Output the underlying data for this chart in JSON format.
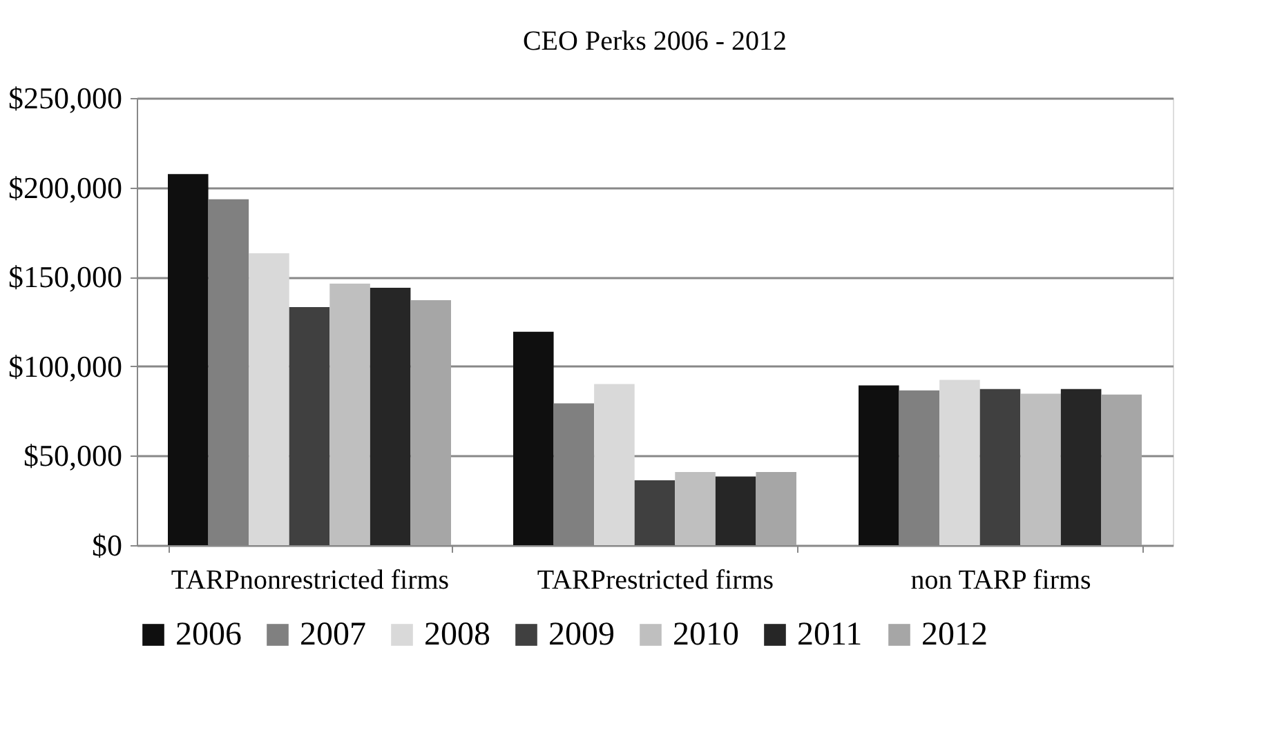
{
  "chart_data": {
    "type": "bar",
    "title": "CEO Perks 2006 - 2012",
    "categories": [
      "TARPnonrestricted firms",
      "TARPrestricted firms",
      "non TARP firms"
    ],
    "series": [
      {
        "name": "2006",
        "color": "#0f0f0f",
        "values": [
          207500,
          119300,
          89300
        ]
      },
      {
        "name": "2007",
        "color": "#808080",
        "values": [
          193400,
          79300,
          86500
        ]
      },
      {
        "name": "2008",
        "color": "#d9d9d9",
        "values": [
          163200,
          90100,
          92400
        ]
      },
      {
        "name": "2009",
        "color": "#404040",
        "values": [
          133100,
          36300,
          87300
        ]
      },
      {
        "name": "2010",
        "color": "#bfbfbf",
        "values": [
          146200,
          40900,
          84700
        ]
      },
      {
        "name": "2011",
        "color": "#262626",
        "values": [
          143900,
          38400,
          87300
        ]
      },
      {
        "name": "2012",
        "color": "#a6a6a6",
        "values": [
          137000,
          40900,
          84200
        ]
      }
    ],
    "ylim": [
      0,
      250000
    ],
    "yticks": [
      {
        "value": 0,
        "label": "$0"
      },
      {
        "value": 50000,
        "label": "$50,000"
      },
      {
        "value": 100000,
        "label": "$100,000"
      },
      {
        "value": 150000,
        "label": "$150,000"
      },
      {
        "value": 200000,
        "label": "$200,000"
      },
      {
        "value": 250000,
        "label": "$250,000"
      }
    ],
    "grid": "y",
    "legend": "bottom"
  }
}
